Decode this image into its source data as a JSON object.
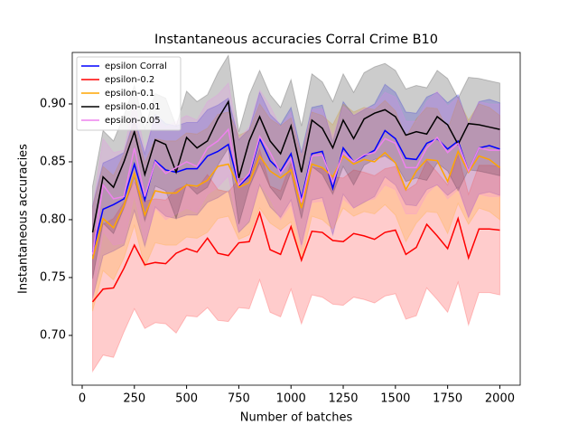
{
  "chart_data": {
    "type": "line",
    "title": "Instantaneous accuracies Corral Crime B10",
    "x_label": "Number of batches",
    "y_label": "Instantaneous accuracies",
    "x": [
      50,
      100,
      150,
      200,
      250,
      300,
      350,
      400,
      450,
      500,
      550,
      600,
      650,
      700,
      750,
      800,
      850,
      900,
      950,
      1000,
      1050,
      1100,
      1150,
      1200,
      1250,
      1300,
      1350,
      1400,
      1450,
      1500,
      1550,
      1600,
      1650,
      1700,
      1750,
      1800,
      1850,
      1900,
      1950,
      2000
    ],
    "xlim": [
      -47.5,
      2097.5
    ],
    "ylim": [
      0.657,
      0.9445
    ],
    "xticks": [
      0,
      250,
      500,
      750,
      1000,
      1250,
      1500,
      1750,
      2000
    ],
    "yticks": [
      {
        "value": 0.7,
        "label": "0.70"
      },
      0.75,
      {
        "value": 0.8,
        "label": "0.80"
      },
      0.85,
      {
        "value": 0.9,
        "label": "0.90"
      }
    ],
    "legend": "upper left",
    "series": [
      {
        "name": "epsilon Corral",
        "color": "#0000ff",
        "values": [
          0.772,
          0.809,
          0.813,
          0.818,
          0.848,
          0.817,
          0.851,
          0.843,
          0.841,
          0.844,
          0.844,
          0.855,
          0.859,
          0.865,
          0.829,
          0.838,
          0.87,
          0.851,
          0.842,
          0.857,
          0.818,
          0.857,
          0.859,
          0.827,
          0.862,
          0.85,
          0.855,
          0.86,
          0.877,
          0.87,
          0.853,
          0.852,
          0.866,
          0.87,
          0.861,
          0.868,
          0.842,
          0.862,
          0.864,
          0.861
        ],
        "lower": [
          0.732,
          0.769,
          0.773,
          0.778,
          0.808,
          0.777,
          0.811,
          0.803,
          0.801,
          0.804,
          0.804,
          0.815,
          0.819,
          0.825,
          0.789,
          0.798,
          0.83,
          0.811,
          0.802,
          0.817,
          0.778,
          0.817,
          0.819,
          0.787,
          0.822,
          0.81,
          0.815,
          0.82,
          0.837,
          0.83,
          0.813,
          0.812,
          0.826,
          0.83,
          0.821,
          0.828,
          0.802,
          0.822,
          0.824,
          0.821
        ],
        "upper": [
          0.812,
          0.849,
          0.853,
          0.858,
          0.888,
          0.857,
          0.891,
          0.883,
          0.881,
          0.884,
          0.884,
          0.895,
          0.899,
          0.905,
          0.869,
          0.878,
          0.91,
          0.891,
          0.882,
          0.897,
          0.858,
          0.897,
          0.899,
          0.867,
          0.902,
          0.89,
          0.895,
          0.9,
          0.917,
          0.91,
          0.893,
          0.892,
          0.906,
          0.91,
          0.901,
          0.908,
          0.882,
          0.902,
          0.904,
          0.901
        ]
      },
      {
        "name": "epsilon-0.2",
        "color": "#ff0000",
        "values": [
          0.729,
          0.74,
          0.741,
          0.758,
          0.778,
          0.761,
          0.763,
          0.762,
          0.771,
          0.775,
          0.772,
          0.784,
          0.771,
          0.769,
          0.78,
          0.781,
          0.806,
          0.774,
          0.77,
          0.794,
          0.765,
          0.79,
          0.789,
          0.782,
          0.781,
          0.788,
          0.786,
          0.783,
          0.789,
          0.791,
          0.77,
          0.776,
          0.796,
          0.786,
          0.775,
          0.801,
          0.767,
          0.792,
          0.792,
          0.791
        ],
        "lower": [
          0.669,
          0.683,
          0.681,
          0.703,
          0.723,
          0.706,
          0.711,
          0.71,
          0.702,
          0.717,
          0.716,
          0.724,
          0.713,
          0.712,
          0.724,
          0.723,
          0.748,
          0.72,
          0.716,
          0.74,
          0.71,
          0.735,
          0.733,
          0.727,
          0.726,
          0.733,
          0.731,
          0.728,
          0.734,
          0.736,
          0.714,
          0.717,
          0.741,
          0.731,
          0.72,
          0.746,
          0.709,
          0.737,
          0.737,
          0.735
        ],
        "upper": [
          0.79,
          0.796,
          0.801,
          0.815,
          0.833,
          0.816,
          0.818,
          0.817,
          0.826,
          0.83,
          0.827,
          0.839,
          0.826,
          0.824,
          0.835,
          0.836,
          0.861,
          0.829,
          0.825,
          0.849,
          0.82,
          0.845,
          0.844,
          0.837,
          0.836,
          0.843,
          0.841,
          0.838,
          0.844,
          0.846,
          0.825,
          0.831,
          0.851,
          0.841,
          0.83,
          0.856,
          0.822,
          0.847,
          0.847,
          0.846
        ]
      },
      {
        "name": "epsilon-0.1",
        "color": "#ffa500",
        "values": [
          0.766,
          0.801,
          0.793,
          0.812,
          0.84,
          0.804,
          0.825,
          0.823,
          0.823,
          0.83,
          0.829,
          0.834,
          0.846,
          0.848,
          0.828,
          0.832,
          0.855,
          0.842,
          0.836,
          0.843,
          0.81,
          0.848,
          0.845,
          0.837,
          0.855,
          0.848,
          0.852,
          0.85,
          0.858,
          0.849,
          0.826,
          0.842,
          0.852,
          0.851,
          0.833,
          0.859,
          0.841,
          0.855,
          0.852,
          0.845
        ],
        "lower": [
          0.721,
          0.756,
          0.748,
          0.767,
          0.795,
          0.759,
          0.78,
          0.778,
          0.778,
          0.785,
          0.784,
          0.789,
          0.801,
          0.803,
          0.783,
          0.787,
          0.81,
          0.797,
          0.791,
          0.798,
          0.765,
          0.803,
          0.8,
          0.792,
          0.81,
          0.803,
          0.807,
          0.805,
          0.813,
          0.804,
          0.781,
          0.797,
          0.807,
          0.806,
          0.788,
          0.814,
          0.796,
          0.81,
          0.807,
          0.8
        ],
        "upper": [
          0.811,
          0.846,
          0.838,
          0.857,
          0.885,
          0.849,
          0.87,
          0.868,
          0.868,
          0.875,
          0.874,
          0.879,
          0.891,
          0.893,
          0.873,
          0.877,
          0.9,
          0.887,
          0.881,
          0.888,
          0.855,
          0.893,
          0.89,
          0.882,
          0.9,
          0.893,
          0.897,
          0.895,
          0.903,
          0.894,
          0.871,
          0.887,
          0.897,
          0.896,
          0.878,
          0.904,
          0.886,
          0.9,
          0.897,
          0.89
        ]
      },
      {
        "name": "epsilon-0.01",
        "color": "#000000",
        "values": [
          0.789,
          0.837,
          0.828,
          0.85,
          0.876,
          0.839,
          0.869,
          0.865,
          0.841,
          0.871,
          0.862,
          0.868,
          0.887,
          0.902,
          0.836,
          0.868,
          0.889,
          0.868,
          0.857,
          0.881,
          0.841,
          0.886,
          0.879,
          0.862,
          0.886,
          0.87,
          0.887,
          0.892,
          0.895,
          0.889,
          0.873,
          0.876,
          0.874,
          0.889,
          0.882,
          0.865,
          0.883,
          0.882,
          0.88,
          0.878
        ],
        "lower": [
          0.749,
          0.797,
          0.788,
          0.81,
          0.836,
          0.799,
          0.829,
          0.825,
          0.801,
          0.831,
          0.822,
          0.828,
          0.847,
          0.862,
          0.796,
          0.828,
          0.849,
          0.828,
          0.817,
          0.841,
          0.801,
          0.846,
          0.839,
          0.822,
          0.846,
          0.83,
          0.847,
          0.852,
          0.855,
          0.849,
          0.833,
          0.836,
          0.834,
          0.849,
          0.842,
          0.825,
          0.843,
          0.842,
          0.84,
          0.838
        ],
        "upper": [
          0.829,
          0.877,
          0.868,
          0.89,
          0.916,
          0.879,
          0.909,
          0.905,
          0.881,
          0.911,
          0.902,
          0.908,
          0.927,
          0.942,
          0.876,
          0.908,
          0.929,
          0.908,
          0.897,
          0.921,
          0.881,
          0.926,
          0.919,
          0.902,
          0.926,
          0.91,
          0.927,
          0.932,
          0.935,
          0.929,
          0.913,
          0.916,
          0.914,
          0.929,
          0.922,
          0.905,
          0.923,
          0.922,
          0.92,
          0.918
        ]
      },
      {
        "name": "epsilon-0.05",
        "color": "#ee82ee",
        "values": [
          0.77,
          0.83,
          0.818,
          0.82,
          0.862,
          0.82,
          0.85,
          0.84,
          0.845,
          0.85,
          0.846,
          0.862,
          0.868,
          0.878,
          0.83,
          0.84,
          0.872,
          0.858,
          0.84,
          0.853,
          0.815,
          0.855,
          0.856,
          0.832,
          0.858,
          0.85,
          0.856,
          0.858,
          0.87,
          0.866,
          0.845,
          0.845,
          0.862,
          0.871,
          0.858,
          0.866,
          0.842,
          0.862,
          0.86,
          0.86
        ],
        "lower": [
          0.73,
          0.79,
          0.778,
          0.78,
          0.822,
          0.78,
          0.81,
          0.8,
          0.805,
          0.81,
          0.806,
          0.822,
          0.828,
          0.838,
          0.79,
          0.8,
          0.832,
          0.818,
          0.8,
          0.813,
          0.775,
          0.815,
          0.816,
          0.792,
          0.818,
          0.81,
          0.816,
          0.818,
          0.83,
          0.826,
          0.805,
          0.805,
          0.822,
          0.831,
          0.818,
          0.826,
          0.802,
          0.822,
          0.82,
          0.82
        ],
        "upper": [
          0.81,
          0.87,
          0.858,
          0.86,
          0.902,
          0.86,
          0.89,
          0.88,
          0.885,
          0.89,
          0.886,
          0.902,
          0.908,
          0.918,
          0.87,
          0.88,
          0.912,
          0.898,
          0.88,
          0.893,
          0.855,
          0.895,
          0.896,
          0.872,
          0.898,
          0.89,
          0.896,
          0.898,
          0.91,
          0.906,
          0.885,
          0.885,
          0.902,
          0.911,
          0.898,
          0.906,
          0.882,
          0.902,
          0.9,
          0.9
        ]
      }
    ]
  }
}
